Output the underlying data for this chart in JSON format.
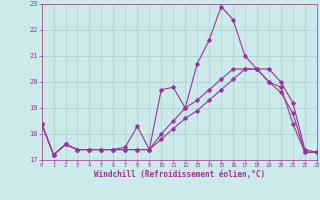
{
  "title": "",
  "xlabel": "Windchill (Refroidissement éolien,°C)",
  "ylabel": "",
  "bg_color": "#cceaea",
  "grid_color": "#aacccc",
  "line_color": "#993399",
  "xmin": 0,
  "xmax": 23,
  "ymin": 17,
  "ymax": 23,
  "yticks": [
    17,
    18,
    19,
    20,
    21,
    22,
    23
  ],
  "xticks": [
    0,
    1,
    2,
    3,
    4,
    5,
    6,
    7,
    8,
    9,
    10,
    11,
    12,
    13,
    14,
    15,
    16,
    17,
    18,
    19,
    20,
    21,
    22,
    23
  ],
  "line1_x": [
    0,
    1,
    2,
    3,
    4,
    5,
    6,
    7,
    8,
    9,
    10,
    11,
    12,
    13,
    14,
    15,
    16,
    17,
    18,
    19,
    20,
    21,
    22,
    23
  ],
  "line1_y": [
    18.4,
    17.2,
    17.6,
    17.4,
    17.4,
    17.4,
    17.4,
    17.5,
    18.3,
    17.4,
    19.7,
    19.8,
    19.0,
    20.7,
    21.6,
    22.9,
    22.4,
    21.0,
    20.5,
    20.0,
    19.8,
    18.4,
    17.3,
    17.3
  ],
  "line2_x": [
    0,
    1,
    2,
    3,
    4,
    5,
    6,
    7,
    8,
    9,
    10,
    11,
    12,
    13,
    14,
    15,
    16,
    17,
    18,
    19,
    20,
    21,
    22,
    23
  ],
  "line2_y": [
    18.4,
    17.2,
    17.6,
    17.4,
    17.4,
    17.4,
    17.4,
    17.4,
    17.4,
    17.4,
    18.0,
    18.5,
    19.0,
    19.3,
    19.7,
    20.1,
    20.5,
    20.5,
    20.5,
    20.5,
    20.0,
    19.2,
    17.4,
    17.3
  ],
  "line3_x": [
    0,
    1,
    2,
    3,
    4,
    5,
    6,
    7,
    8,
    9,
    10,
    11,
    12,
    13,
    14,
    15,
    16,
    17,
    18,
    19,
    20,
    21,
    22,
    23
  ],
  "line3_y": [
    18.4,
    17.2,
    17.6,
    17.4,
    17.4,
    17.4,
    17.4,
    17.4,
    17.4,
    17.4,
    17.8,
    18.2,
    18.6,
    18.9,
    19.3,
    19.7,
    20.1,
    20.5,
    20.5,
    20.0,
    19.6,
    18.8,
    17.3,
    17.3
  ]
}
